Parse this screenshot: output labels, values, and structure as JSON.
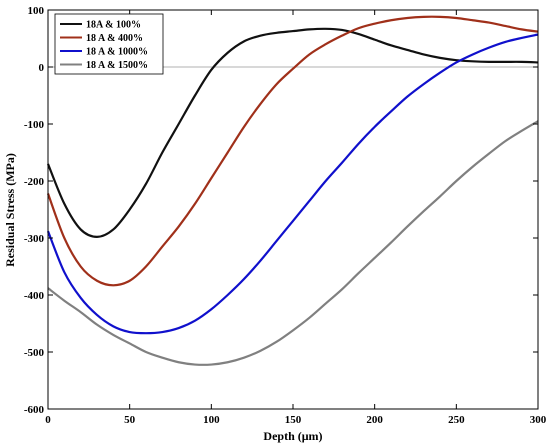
{
  "chart_data": {
    "type": "line",
    "title": "",
    "xlabel": "Depth (μm)",
    "ylabel": "Residual Stress (MPa)",
    "xlim": [
      0,
      300
    ],
    "ylim": [
      -600,
      100
    ],
    "x_ticks": [
      0,
      50,
      100,
      150,
      200,
      250,
      300
    ],
    "y_ticks": [
      100,
      0,
      -100,
      -200,
      -300,
      -400,
      -500,
      -600
    ],
    "grid": false,
    "zero_line": true,
    "legend_position": "top-left",
    "series": [
      {
        "name": "18A & 100%",
        "color": "#111111",
        "points": [
          [
            0,
            -170
          ],
          [
            10,
            -240
          ],
          [
            20,
            -285
          ],
          [
            30,
            -298
          ],
          [
            40,
            -285
          ],
          [
            50,
            -250
          ],
          [
            60,
            -205
          ],
          [
            70,
            -150
          ],
          [
            80,
            -100
          ],
          [
            90,
            -50
          ],
          [
            100,
            -5
          ],
          [
            110,
            25
          ],
          [
            120,
            45
          ],
          [
            130,
            55
          ],
          [
            140,
            60
          ],
          [
            150,
            63
          ],
          [
            160,
            66
          ],
          [
            170,
            67
          ],
          [
            180,
            65
          ],
          [
            190,
            58
          ],
          [
            200,
            48
          ],
          [
            210,
            38
          ],
          [
            220,
            30
          ],
          [
            230,
            22
          ],
          [
            240,
            16
          ],
          [
            250,
            12
          ],
          [
            260,
            10
          ],
          [
            270,
            9
          ],
          [
            280,
            9
          ],
          [
            290,
            9
          ],
          [
            300,
            8
          ]
        ]
      },
      {
        "name": "18 A & 400%",
        "color": "#a0301a",
        "points": [
          [
            0,
            -222
          ],
          [
            10,
            -300
          ],
          [
            20,
            -350
          ],
          [
            30,
            -375
          ],
          [
            40,
            -383
          ],
          [
            50,
            -375
          ],
          [
            60,
            -350
          ],
          [
            70,
            -315
          ],
          [
            80,
            -280
          ],
          [
            90,
            -240
          ],
          [
            100,
            -195
          ],
          [
            110,
            -150
          ],
          [
            120,
            -105
          ],
          [
            130,
            -65
          ],
          [
            140,
            -30
          ],
          [
            150,
            -3
          ],
          [
            160,
            22
          ],
          [
            170,
            40
          ],
          [
            180,
            55
          ],
          [
            190,
            68
          ],
          [
            200,
            76
          ],
          [
            210,
            82
          ],
          [
            220,
            86
          ],
          [
            230,
            88
          ],
          [
            240,
            88
          ],
          [
            250,
            86
          ],
          [
            260,
            82
          ],
          [
            270,
            78
          ],
          [
            280,
            72
          ],
          [
            290,
            66
          ],
          [
            300,
            62
          ]
        ]
      },
      {
        "name": "18 A & 1000%",
        "color": "#1010cc",
        "points": [
          [
            0,
            -288
          ],
          [
            10,
            -360
          ],
          [
            20,
            -405
          ],
          [
            30,
            -435
          ],
          [
            40,
            -455
          ],
          [
            50,
            -465
          ],
          [
            60,
            -467
          ],
          [
            70,
            -465
          ],
          [
            80,
            -458
          ],
          [
            90,
            -445
          ],
          [
            100,
            -425
          ],
          [
            110,
            -400
          ],
          [
            120,
            -372
          ],
          [
            130,
            -340
          ],
          [
            140,
            -305
          ],
          [
            150,
            -270
          ],
          [
            160,
            -235
          ],
          [
            170,
            -200
          ],
          [
            180,
            -168
          ],
          [
            190,
            -135
          ],
          [
            200,
            -105
          ],
          [
            210,
            -78
          ],
          [
            220,
            -52
          ],
          [
            230,
            -30
          ],
          [
            240,
            -10
          ],
          [
            250,
            8
          ],
          [
            260,
            22
          ],
          [
            270,
            34
          ],
          [
            280,
            44
          ],
          [
            290,
            51
          ],
          [
            300,
            57
          ]
        ]
      },
      {
        "name": "18 A & 1500%",
        "color": "#808080",
        "points": [
          [
            0,
            -388
          ],
          [
            10,
            -410
          ],
          [
            20,
            -430
          ],
          [
            30,
            -452
          ],
          [
            40,
            -470
          ],
          [
            50,
            -485
          ],
          [
            60,
            -500
          ],
          [
            70,
            -510
          ],
          [
            80,
            -518
          ],
          [
            90,
            -522
          ],
          [
            100,
            -522
          ],
          [
            110,
            -518
          ],
          [
            120,
            -510
          ],
          [
            130,
            -498
          ],
          [
            140,
            -482
          ],
          [
            150,
            -462
          ],
          [
            160,
            -440
          ],
          [
            170,
            -415
          ],
          [
            180,
            -390
          ],
          [
            190,
            -362
          ],
          [
            200,
            -335
          ],
          [
            210,
            -308
          ],
          [
            220,
            -280
          ],
          [
            230,
            -253
          ],
          [
            240,
            -227
          ],
          [
            250,
            -200
          ],
          [
            260,
            -175
          ],
          [
            270,
            -152
          ],
          [
            280,
            -130
          ],
          [
            290,
            -112
          ],
          [
            300,
            -95
          ]
        ]
      }
    ]
  }
}
